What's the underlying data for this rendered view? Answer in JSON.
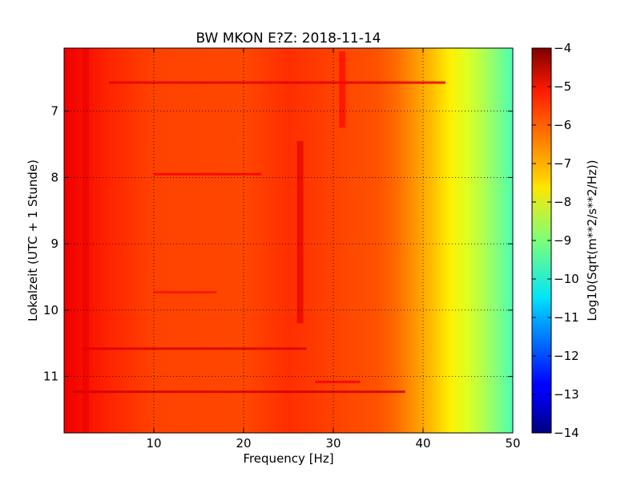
{
  "chart_data": {
    "type": "heatmap",
    "title": "BW MKON E?Z: 2018-11-14",
    "xlabel": "Frequency [Hz]",
    "ylabel": "Lokalzeit (UTC + 1 Stunde)",
    "xlim": [
      0,
      50
    ],
    "ylim": [
      11.85,
      6.05
    ],
    "y_inverted": true,
    "x_ticks": [
      10,
      20,
      30,
      40,
      50
    ],
    "y_ticks": [
      7,
      8,
      9,
      10,
      11
    ],
    "grid": true,
    "colormap": "jet",
    "colorbar": {
      "label": "Log10(Sqrt(m**2/s**2/Hz))",
      "range": [
        -14,
        -4
      ],
      "ticks": [
        -4,
        -5,
        -6,
        -7,
        -8,
        -9,
        -10,
        -11,
        -12,
        -13,
        -14
      ]
    },
    "value_profile_by_frequency": [
      {
        "x": 0,
        "z": -5.1
      },
      {
        "x": 5,
        "z": -5.6
      },
      {
        "x": 10,
        "z": -5.9
      },
      {
        "x": 20,
        "z": -5.95
      },
      {
        "x": 25,
        "z": -5.7
      },
      {
        "x": 30,
        "z": -5.9
      },
      {
        "x": 35,
        "z": -6.05
      },
      {
        "x": 37,
        "z": -6.3
      },
      {
        "x": 39,
        "z": -6.7
      },
      {
        "x": 41,
        "z": -7.1
      },
      {
        "x": 43,
        "z": -7.6
      },
      {
        "x": 45,
        "z": -8.1
      },
      {
        "x": 47,
        "z": -8.6
      },
      {
        "x": 49,
        "z": -9.2
      },
      {
        "x": 50,
        "z": -9.5
      }
    ],
    "features": [
      {
        "kind": "horizontal_line",
        "time": 6.57,
        "x_from": 5,
        "x_to": 42.5,
        "z": -5.0
      },
      {
        "kind": "horizontal_line",
        "time": 7.95,
        "x_from": 10,
        "x_to": 22,
        "z": -5.2
      },
      {
        "kind": "horizontal_line",
        "time": 9.73,
        "x_from": 10,
        "x_to": 17,
        "z": -5.4
      },
      {
        "kind": "horizontal_line",
        "time": 10.58,
        "x_from": 2,
        "x_to": 27,
        "z": -4.9
      },
      {
        "kind": "horizontal_line",
        "time": 11.08,
        "x_from": 28,
        "x_to": 33,
        "z": -5.2
      },
      {
        "kind": "horizontal_line",
        "time": 11.23,
        "x_from": 1,
        "x_to": 38,
        "z": -4.8
      },
      {
        "kind": "vertical_band",
        "x": 2.4,
        "t_from": 6.05,
        "t_to": 11.85,
        "z": -5.1
      },
      {
        "kind": "vertical_band",
        "x": 26.3,
        "t_from": 7.45,
        "t_to": 10.2,
        "z": -5.0
      },
      {
        "kind": "vertical_band",
        "x": 31,
        "t_from": 6.1,
        "t_to": 7.25,
        "z": -5.3
      }
    ]
  }
}
